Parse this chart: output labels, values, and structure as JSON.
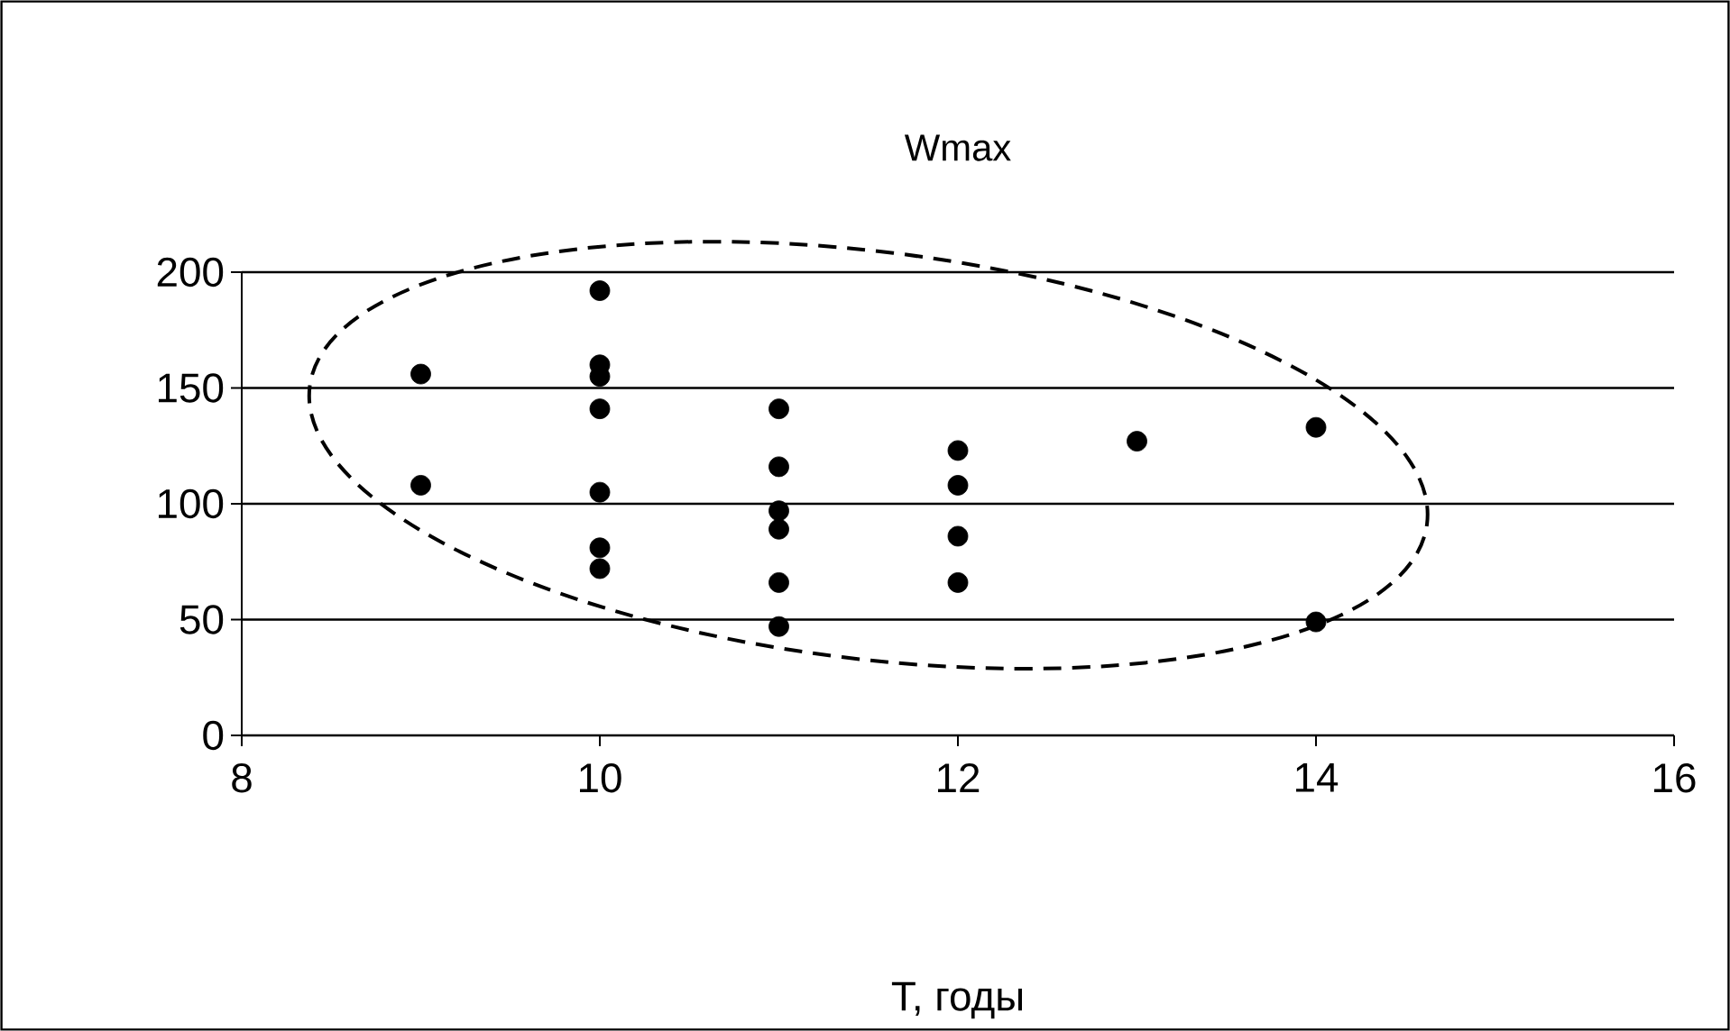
{
  "chart_data": {
    "type": "scatter",
    "title": "Wmax",
    "xlabel": "T, годы",
    "x": [
      9,
      9,
      10,
      10,
      10,
      10,
      10,
      10,
      10,
      11,
      11,
      11,
      11,
      11,
      11,
      12,
      12,
      12,
      12,
      13,
      14,
      14
    ],
    "values": [
      156,
      108,
      192,
      160,
      155,
      141,
      105,
      81,
      72,
      141,
      116,
      97,
      89,
      66,
      47,
      123,
      108,
      86,
      66,
      127,
      133,
      49
    ],
    "color": "#000000",
    "marker": "circle",
    "grid": "y",
    "xlim": [
      8,
      16
    ],
    "xticks": [
      8,
      10,
      12,
      14,
      16
    ],
    "ylim": [
      0,
      200
    ],
    "yticks": [
      0,
      50,
      100,
      150,
      200
    ]
  }
}
